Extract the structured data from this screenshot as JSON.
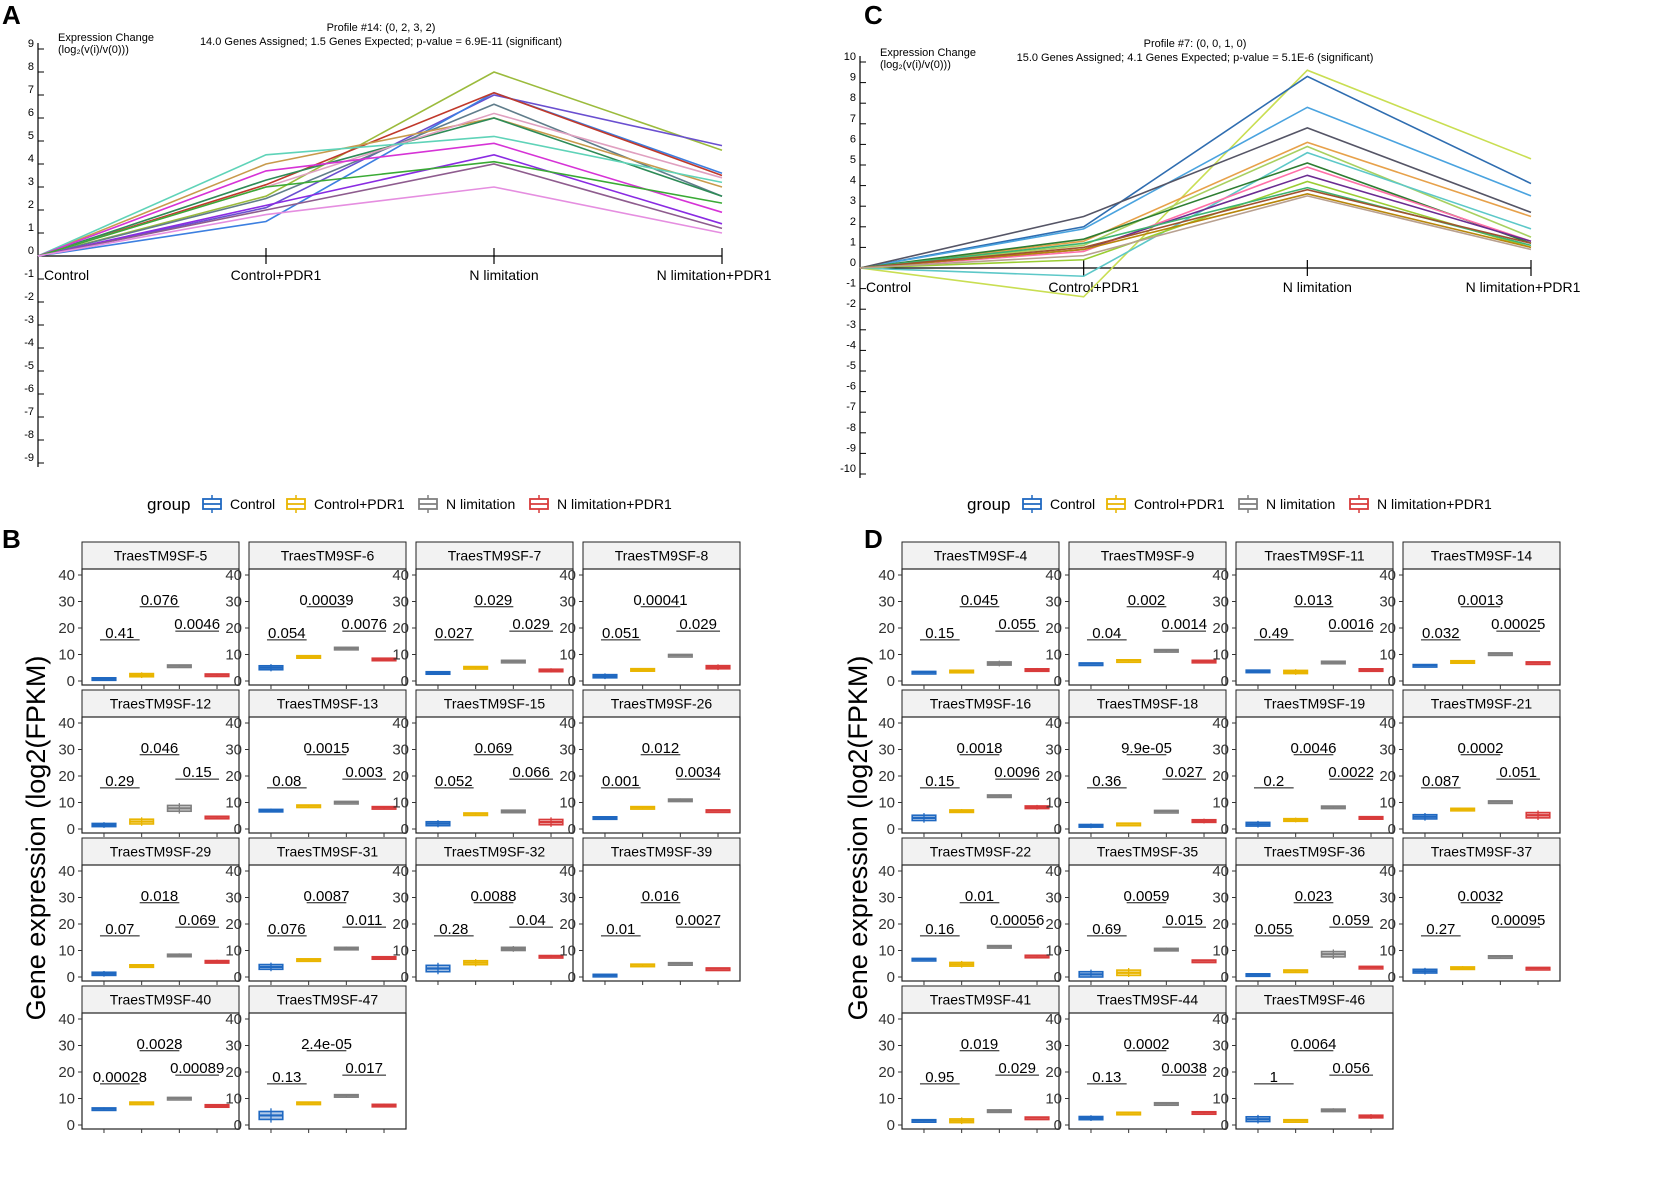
{
  "panel_labels": [
    "A",
    "B",
    "C",
    "D"
  ],
  "colors": {
    "Control": "#1f68c1",
    "Control+PDR1": "#e9b500",
    "N limitation": "#7f7f7f",
    "N limitation+PDR1": "#d83b3b"
  },
  "chart_data": [
    {
      "panel": "A",
      "type": "line",
      "title": "Profile #14: (0, 2, 3, 2)",
      "subtitle": "14.0 Genes Assigned; 1.5 Genes Expected; p-value = 6.9E-11 (significant)",
      "ylabel": "Expression Change",
      "ylabel2": "(log₂(v(i)/v(0)))",
      "ylim": [
        -9,
        9
      ],
      "yticks": [
        9,
        8,
        7,
        6,
        5,
        4,
        3,
        2,
        1,
        0,
        -1,
        -2,
        -3,
        -4,
        -5,
        -6,
        -7,
        -8,
        -9
      ],
      "categories": [
        "Control",
        "Control+PDR1",
        "N limitation",
        "N limitation+PDR1"
      ],
      "series": [
        {
          "color": "#9bbb3c",
          "values": [
            0,
            2.6,
            8.0,
            4.6
          ]
        },
        {
          "color": "#6a4fd0",
          "values": [
            0,
            2.1,
            7.0,
            4.8
          ]
        },
        {
          "color": "#3c7fe0",
          "values": [
            0,
            1.5,
            7.1,
            3.6
          ]
        },
        {
          "color": "#c0392b",
          "values": [
            0,
            3.1,
            7.1,
            3.5
          ]
        },
        {
          "color": "#607d8b",
          "values": [
            0,
            2.5,
            6.6,
            2.6
          ]
        },
        {
          "color": "#c89a4c",
          "values": [
            0,
            4.0,
            6.0,
            3.0
          ]
        },
        {
          "color": "#2e8b57",
          "values": [
            0,
            3.3,
            6.0,
            2.6
          ]
        },
        {
          "color": "#e0a0c0",
          "values": [
            0,
            3.0,
            6.2,
            3.4
          ]
        },
        {
          "color": "#5fd3b8",
          "values": [
            0,
            4.4,
            5.2,
            3.2
          ]
        },
        {
          "color": "#d633d6",
          "values": [
            0,
            3.7,
            4.9,
            1.9
          ]
        },
        {
          "color": "#8a2be2",
          "values": [
            0,
            2.2,
            4.4,
            1.4
          ]
        },
        {
          "color": "#8e5c8e",
          "values": [
            0,
            2.0,
            4.0,
            1.2
          ]
        },
        {
          "color": "#3aaa35",
          "values": [
            0,
            3.0,
            4.1,
            2.3
          ]
        },
        {
          "color": "#e58ee0",
          "values": [
            0,
            1.8,
            3.0,
            1.0
          ]
        }
      ]
    },
    {
      "panel": "C",
      "type": "line",
      "title": "Profile #7: (0, 0, 1, 0)",
      "subtitle": "15.0 Genes Assigned; 4.1 Genes Expected; p-value = 5.1E-6 (significant)",
      "ylabel": "Expression Change",
      "ylabel2": "(log₂(v(i)/v(0)))",
      "ylim": [
        -10,
        10
      ],
      "yticks": [
        10,
        9,
        8,
        7,
        6,
        5,
        4,
        3,
        2,
        1,
        0,
        -1,
        -2,
        -3,
        -4,
        -5,
        -6,
        -7,
        -8,
        -9,
        -10
      ],
      "categories": [
        "Control",
        "Control+PDR1",
        "N limitation",
        "N limitation+PDR1"
      ],
      "series": [
        {
          "color": "#c9de52",
          "values": [
            0,
            -1.4,
            9.6,
            5.3
          ]
        },
        {
          "color": "#2f6db0",
          "values": [
            0,
            2.0,
            9.3,
            4.1
          ]
        },
        {
          "color": "#4aa3df",
          "values": [
            0,
            1.9,
            7.8,
            3.5
          ]
        },
        {
          "color": "#555566",
          "values": [
            0,
            2.5,
            6.8,
            2.7
          ]
        },
        {
          "color": "#e7a14a",
          "values": [
            0,
            1.3,
            6.1,
            2.5
          ]
        },
        {
          "color": "#a8d060",
          "values": [
            0,
            1.1,
            5.9,
            1.5
          ]
        },
        {
          "color": "#5dc8c8",
          "values": [
            0,
            -0.4,
            5.6,
            1.9
          ]
        },
        {
          "color": "#2e7d32",
          "values": [
            0,
            1.4,
            5.1,
            1.2
          ]
        },
        {
          "color": "#ff6fa8",
          "values": [
            0,
            0.8,
            4.9,
            1.3
          ]
        },
        {
          "color": "#6a2c91",
          "values": [
            0,
            0.9,
            4.5,
            1.3
          ]
        },
        {
          "color": "#9acd32",
          "values": [
            0,
            0.4,
            4.2,
            1.0
          ]
        },
        {
          "color": "#3cb371",
          "values": [
            0,
            1.2,
            3.9,
            1.1
          ]
        },
        {
          "color": "#b8860b",
          "values": [
            0,
            0.9,
            3.6,
            1.0
          ]
        },
        {
          "color": "#a0522d",
          "values": [
            0,
            1.0,
            3.8,
            1.2
          ]
        },
        {
          "color": "#b8a090",
          "values": [
            0,
            0.6,
            3.5,
            0.9
          ]
        }
      ]
    },
    {
      "panel": "B",
      "type": "boxplot-facets",
      "legend_title": "group",
      "legend_entries": [
        "Control",
        "Control+PDR1",
        "N limitation",
        "N limitation+PDR1"
      ],
      "ylabel": "Gene expression (log2(FPKM)",
      "ylim": [
        0,
        40
      ],
      "yticks": [
        0,
        10,
        20,
        30,
        40
      ],
      "facets": [
        {
          "name": "TraesTM9SF-5",
          "medians": [
            1.0,
            2.2,
            5.8,
            2.4
          ],
          "iqr": [
            0.4,
            1.2,
            0.5,
            0.5
          ],
          "p": [
            "0.41",
            "0.076",
            "0.0046"
          ]
        },
        {
          "name": "TraesTM9SF-6",
          "medians": [
            5.0,
            9.3,
            12.5,
            8.3
          ],
          "iqr": [
            1.5,
            0.5,
            0.4,
            0.6
          ],
          "p": [
            "0.054",
            "0.00039",
            "0.0076"
          ]
        },
        {
          "name": "TraesTM9SF-7",
          "medians": [
            3.2,
            5.2,
            7.6,
            4.0
          ],
          "iqr": [
            0.6,
            0.5,
            0.4,
            0.9
          ],
          "p": [
            "0.027",
            "0.029",
            "0.029"
          ]
        },
        {
          "name": "TraesTM9SF-8",
          "medians": [
            1.8,
            4.4,
            9.8,
            5.2
          ],
          "iqr": [
            1.2,
            0.5,
            0.4,
            1.2
          ],
          "p": [
            "0.051",
            "0.00041",
            "0.029"
          ]
        },
        {
          "name": "TraesTM9SF-12",
          "medians": [
            1.5,
            2.8,
            7.8,
            4.6
          ],
          "iqr": [
            1.2,
            1.8,
            2.2,
            0.4
          ],
          "p": [
            "0.29",
            "0.046",
            "0.15"
          ]
        },
        {
          "name": "TraesTM9SF-13",
          "medians": [
            7.0,
            8.8,
            10.2,
            8.2
          ],
          "iqr": [
            0.8,
            0.5,
            0.4,
            0.5
          ],
          "p": [
            "0.08",
            "0.0015",
            "0.003"
          ]
        },
        {
          "name": "TraesTM9SF-15",
          "medians": [
            2.0,
            5.8,
            6.8,
            2.6
          ],
          "iqr": [
            1.5,
            0.5,
            0.6,
            2.0
          ],
          "p": [
            "0.052",
            "0.069",
            "0.066"
          ]
        },
        {
          "name": "TraesTM9SF-26",
          "medians": [
            4.4,
            8.2,
            11.0,
            7.0
          ],
          "iqr": [
            0.4,
            0.5,
            0.6,
            0.4
          ],
          "p": [
            "0.001",
            "0.012",
            "0.0034"
          ]
        },
        {
          "name": "TraesTM9SF-29",
          "medians": [
            1.2,
            4.4,
            8.2,
            5.8
          ],
          "iqr": [
            1.2,
            0.4,
            0.8,
            0.8
          ],
          "p": [
            "0.07",
            "0.018",
            "0.069"
          ]
        },
        {
          "name": "TraesTM9SF-31",
          "medians": [
            3.8,
            6.6,
            10.8,
            7.4
          ],
          "iqr": [
            1.8,
            0.5,
            0.8,
            0.5
          ],
          "p": [
            "0.076",
            "0.0087",
            "0.011"
          ]
        },
        {
          "name": "TraesTM9SF-32",
          "medians": [
            3.2,
            5.4,
            10.6,
            7.8
          ],
          "iqr": [
            2.4,
            1.5,
            1.2,
            0.6
          ],
          "p": [
            "0.28",
            "0.0088",
            "0.04"
          ]
        },
        {
          "name": "TraesTM9SF-39",
          "medians": [
            0.8,
            4.6,
            5.2,
            3.2
          ],
          "iqr": [
            0.4,
            0.5,
            0.4,
            0.4
          ],
          "p": [
            "0.01",
            "0.016",
            "0.0027"
          ]
        },
        {
          "name": "TraesTM9SF-40",
          "medians": [
            6.2,
            8.4,
            10.2,
            7.4
          ],
          "iqr": [
            0.5,
            0.5,
            0.4,
            0.5
          ],
          "p": [
            "0.00028",
            "0.0028",
            "0.00089"
          ]
        },
        {
          "name": "TraesTM9SF-47",
          "medians": [
            3.6,
            8.4,
            11.2,
            7.4
          ],
          "iqr": [
            3.0,
            0.5,
            0.5,
            0.8
          ],
          "p": [
            "0.13",
            "2.4e-05",
            "0.017"
          ]
        }
      ]
    },
    {
      "panel": "D",
      "type": "boxplot-facets",
      "legend_title": "group",
      "legend_entries": [
        "Control",
        "Control+PDR1",
        "N limitation",
        "N limitation+PDR1"
      ],
      "ylabel": "Gene expression (log2(FPKM)",
      "ylim": [
        0,
        40
      ],
      "yticks": [
        0,
        10,
        20,
        30,
        40
      ],
      "facets": [
        {
          "name": "TraesTM9SF-4",
          "medians": [
            3.4,
            3.8,
            6.6,
            4.2
          ],
          "iqr": [
            0.4,
            0.5,
            1.2,
            0.8
          ],
          "p": [
            "0.15",
            "0.045",
            "0.055"
          ]
        },
        {
          "name": "TraesTM9SF-9",
          "medians": [
            6.6,
            7.8,
            11.6,
            7.6
          ],
          "iqr": [
            0.4,
            0.4,
            0.5,
            0.4
          ],
          "p": [
            "0.04",
            "0.002",
            "0.0014"
          ]
        },
        {
          "name": "TraesTM9SF-11",
          "medians": [
            3.8,
            3.4,
            7.2,
            4.4
          ],
          "iqr": [
            0.6,
            1.2,
            0.5,
            0.4
          ],
          "p": [
            "0.49",
            "0.013",
            "0.0016"
          ]
        },
        {
          "name": "TraesTM9SF-14",
          "medians": [
            6.0,
            7.4,
            10.4,
            7.0
          ],
          "iqr": [
            0.4,
            0.5,
            0.4,
            0.4
          ],
          "p": [
            "0.032",
            "0.0013",
            "0.00025"
          ]
        },
        {
          "name": "TraesTM9SF-16",
          "medians": [
            4.2,
            6.8,
            12.6,
            8.2
          ],
          "iqr": [
            2.0,
            0.8,
            0.5,
            1.0
          ],
          "p": [
            "0.15",
            "0.0018",
            "0.0096"
          ]
        },
        {
          "name": "TraesTM9SF-18",
          "medians": [
            1.2,
            2.0,
            6.8,
            3.0
          ],
          "iqr": [
            1.0,
            0.4,
            0.4,
            1.0
          ],
          "p": [
            "0.36",
            "9.9e-05",
            "0.027"
          ]
        },
        {
          "name": "TraesTM9SF-19",
          "medians": [
            1.8,
            3.4,
            8.4,
            4.4
          ],
          "iqr": [
            1.4,
            1.0,
            0.5,
            0.5
          ],
          "p": [
            "0.2",
            "0.0046",
            "0.0022"
          ]
        },
        {
          "name": "TraesTM9SF-21",
          "medians": [
            4.6,
            7.6,
            10.4,
            5.2
          ],
          "iqr": [
            1.6,
            0.4,
            0.4,
            2.0
          ],
          "p": [
            "0.087",
            "0.0002",
            "0.051"
          ]
        },
        {
          "name": "TraesTM9SF-22",
          "medians": [
            6.8,
            4.8,
            11.6,
            8.0
          ],
          "iqr": [
            0.4,
            1.4,
            0.5,
            0.4
          ],
          "p": [
            "0.16",
            "0.01",
            "0.00056"
          ]
        },
        {
          "name": "TraesTM9SF-35",
          "medians": [
            1.0,
            1.6,
            10.4,
            6.2
          ],
          "iqr": [
            2.0,
            2.0,
            0.8,
            0.4
          ],
          "p": [
            "0.69",
            "0.0059",
            "0.015"
          ]
        },
        {
          "name": "TraesTM9SF-36",
          "medians": [
            1.0,
            2.4,
            8.6,
            3.8
          ],
          "iqr": [
            0.4,
            0.5,
            2.0,
            0.4
          ],
          "p": [
            "0.055",
            "0.023",
            "0.059"
          ]
        },
        {
          "name": "TraesTM9SF-37",
          "medians": [
            2.2,
            3.4,
            7.8,
            3.4
          ],
          "iqr": [
            1.4,
            0.8,
            0.4,
            0.4
          ],
          "p": [
            "0.27",
            "0.0032",
            "0.00095"
          ]
        },
        {
          "name": "TraesTM9SF-41",
          "medians": [
            1.8,
            1.6,
            5.4,
            2.8
          ],
          "iqr": [
            0.4,
            1.4,
            0.6,
            0.4
          ],
          "p": [
            "0.95",
            "0.019",
            "0.029"
          ]
        },
        {
          "name": "TraesTM9SF-44",
          "medians": [
            2.6,
            4.6,
            8.2,
            4.8
          ],
          "iqr": [
            1.2,
            0.4,
            0.4,
            0.4
          ],
          "p": [
            "0.13",
            "0.0002",
            "0.0038"
          ]
        },
        {
          "name": "TraesTM9SF-46",
          "medians": [
            2.2,
            1.8,
            5.6,
            3.2
          ],
          "iqr": [
            1.8,
            0.4,
            0.8,
            1.0
          ],
          "p": [
            "1",
            "0.0064",
            "0.056"
          ]
        }
      ]
    }
  ]
}
